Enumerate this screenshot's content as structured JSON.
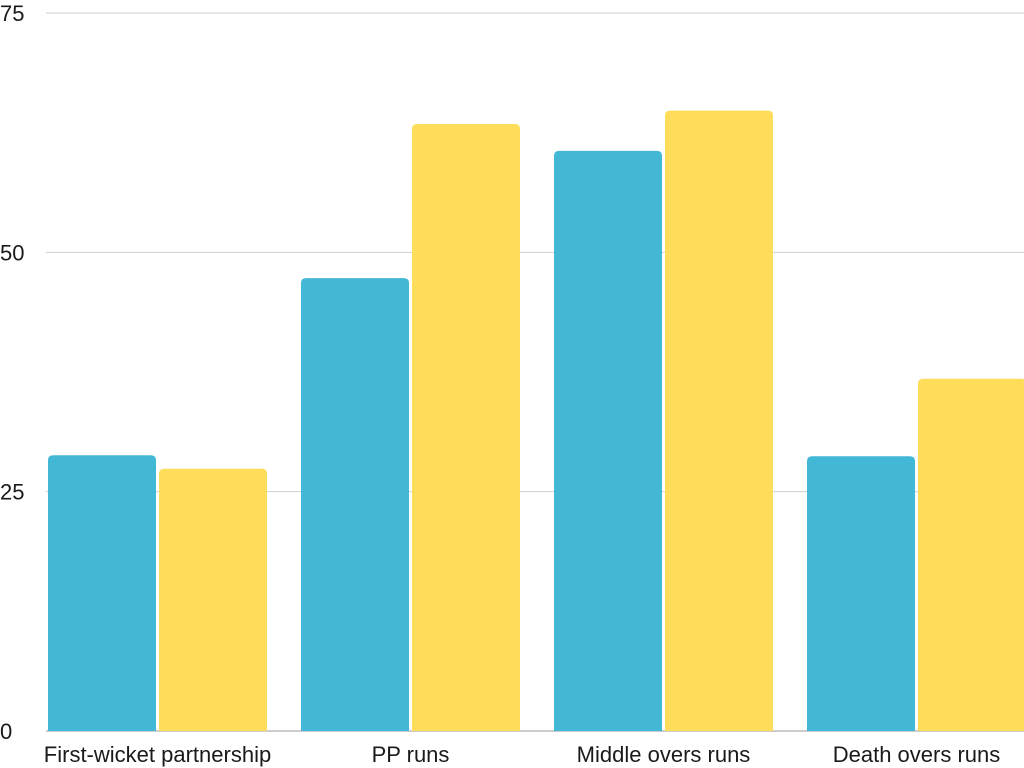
{
  "chart_data": {
    "type": "bar",
    "title": "",
    "xlabel": "",
    "ylabel": "",
    "categories": [
      "First-wicket partnership",
      "PP runs",
      "Middle overs runs",
      "Death overs runs"
    ],
    "series": [
      {
        "values": [
          28.8,
          47.3,
          60.6,
          28.7
        ],
        "color": "#42B7D6"
      },
      {
        "values": [
          27.4,
          63.4,
          64.8,
          36.8
        ],
        "color": "#FEDD5A"
      }
    ],
    "ylim": [
      0,
      75
    ],
    "yticks": [
      0,
      25,
      50,
      75
    ],
    "grid": true,
    "legend": "none"
  }
}
